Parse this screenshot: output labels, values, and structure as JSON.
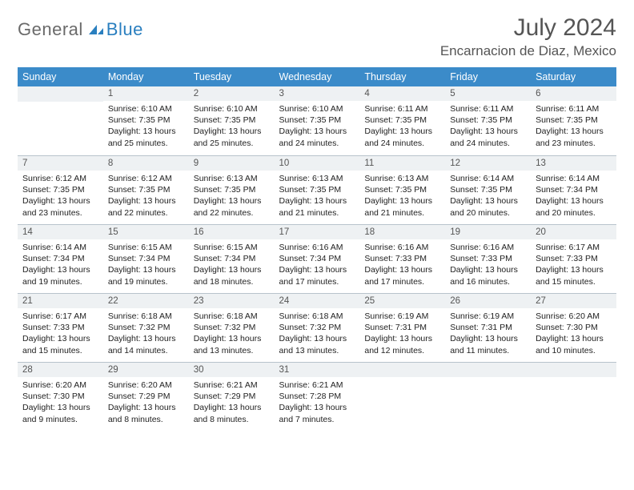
{
  "logo": {
    "part1": "General",
    "part2": "Blue"
  },
  "title": "July 2024",
  "location": "Encarnacion de Diaz, Mexico",
  "colors": {
    "header_bg": "#3b8bc9",
    "header_text": "#ffffff",
    "daynum_bg": "#eef1f3",
    "divider": "#b8c3cc",
    "logo_gray": "#6a6a6a",
    "logo_blue": "#2a7fbf",
    "title_color": "#555555"
  },
  "weekdays": [
    "Sunday",
    "Monday",
    "Tuesday",
    "Wednesday",
    "Thursday",
    "Friday",
    "Saturday"
  ],
  "weeks": [
    [
      null,
      {
        "d": "1",
        "sr": "6:10 AM",
        "ss": "7:35 PM",
        "dl": "13 hours and 25 minutes."
      },
      {
        "d": "2",
        "sr": "6:10 AM",
        "ss": "7:35 PM",
        "dl": "13 hours and 25 minutes."
      },
      {
        "d": "3",
        "sr": "6:10 AM",
        "ss": "7:35 PM",
        "dl": "13 hours and 24 minutes."
      },
      {
        "d": "4",
        "sr": "6:11 AM",
        "ss": "7:35 PM",
        "dl": "13 hours and 24 minutes."
      },
      {
        "d": "5",
        "sr": "6:11 AM",
        "ss": "7:35 PM",
        "dl": "13 hours and 24 minutes."
      },
      {
        "d": "6",
        "sr": "6:11 AM",
        "ss": "7:35 PM",
        "dl": "13 hours and 23 minutes."
      }
    ],
    [
      {
        "d": "7",
        "sr": "6:12 AM",
        "ss": "7:35 PM",
        "dl": "13 hours and 23 minutes."
      },
      {
        "d": "8",
        "sr": "6:12 AM",
        "ss": "7:35 PM",
        "dl": "13 hours and 22 minutes."
      },
      {
        "d": "9",
        "sr": "6:13 AM",
        "ss": "7:35 PM",
        "dl": "13 hours and 22 minutes."
      },
      {
        "d": "10",
        "sr": "6:13 AM",
        "ss": "7:35 PM",
        "dl": "13 hours and 21 minutes."
      },
      {
        "d": "11",
        "sr": "6:13 AM",
        "ss": "7:35 PM",
        "dl": "13 hours and 21 minutes."
      },
      {
        "d": "12",
        "sr": "6:14 AM",
        "ss": "7:35 PM",
        "dl": "13 hours and 20 minutes."
      },
      {
        "d": "13",
        "sr": "6:14 AM",
        "ss": "7:34 PM",
        "dl": "13 hours and 20 minutes."
      }
    ],
    [
      {
        "d": "14",
        "sr": "6:14 AM",
        "ss": "7:34 PM",
        "dl": "13 hours and 19 minutes."
      },
      {
        "d": "15",
        "sr": "6:15 AM",
        "ss": "7:34 PM",
        "dl": "13 hours and 19 minutes."
      },
      {
        "d": "16",
        "sr": "6:15 AM",
        "ss": "7:34 PM",
        "dl": "13 hours and 18 minutes."
      },
      {
        "d": "17",
        "sr": "6:16 AM",
        "ss": "7:34 PM",
        "dl": "13 hours and 17 minutes."
      },
      {
        "d": "18",
        "sr": "6:16 AM",
        "ss": "7:33 PM",
        "dl": "13 hours and 17 minutes."
      },
      {
        "d": "19",
        "sr": "6:16 AM",
        "ss": "7:33 PM",
        "dl": "13 hours and 16 minutes."
      },
      {
        "d": "20",
        "sr": "6:17 AM",
        "ss": "7:33 PM",
        "dl": "13 hours and 15 minutes."
      }
    ],
    [
      {
        "d": "21",
        "sr": "6:17 AM",
        "ss": "7:33 PM",
        "dl": "13 hours and 15 minutes."
      },
      {
        "d": "22",
        "sr": "6:18 AM",
        "ss": "7:32 PM",
        "dl": "13 hours and 14 minutes."
      },
      {
        "d": "23",
        "sr": "6:18 AM",
        "ss": "7:32 PM",
        "dl": "13 hours and 13 minutes."
      },
      {
        "d": "24",
        "sr": "6:18 AM",
        "ss": "7:32 PM",
        "dl": "13 hours and 13 minutes."
      },
      {
        "d": "25",
        "sr": "6:19 AM",
        "ss": "7:31 PM",
        "dl": "13 hours and 12 minutes."
      },
      {
        "d": "26",
        "sr": "6:19 AM",
        "ss": "7:31 PM",
        "dl": "13 hours and 11 minutes."
      },
      {
        "d": "27",
        "sr": "6:20 AM",
        "ss": "7:30 PM",
        "dl": "13 hours and 10 minutes."
      }
    ],
    [
      {
        "d": "28",
        "sr": "6:20 AM",
        "ss": "7:30 PM",
        "dl": "13 hours and 9 minutes."
      },
      {
        "d": "29",
        "sr": "6:20 AM",
        "ss": "7:29 PM",
        "dl": "13 hours and 8 minutes."
      },
      {
        "d": "30",
        "sr": "6:21 AM",
        "ss": "7:29 PM",
        "dl": "13 hours and 8 minutes."
      },
      {
        "d": "31",
        "sr": "6:21 AM",
        "ss": "7:28 PM",
        "dl": "13 hours and 7 minutes."
      },
      null,
      null,
      null
    ]
  ],
  "labels": {
    "sunrise": "Sunrise:",
    "sunset": "Sunset:",
    "daylight": "Daylight:"
  }
}
